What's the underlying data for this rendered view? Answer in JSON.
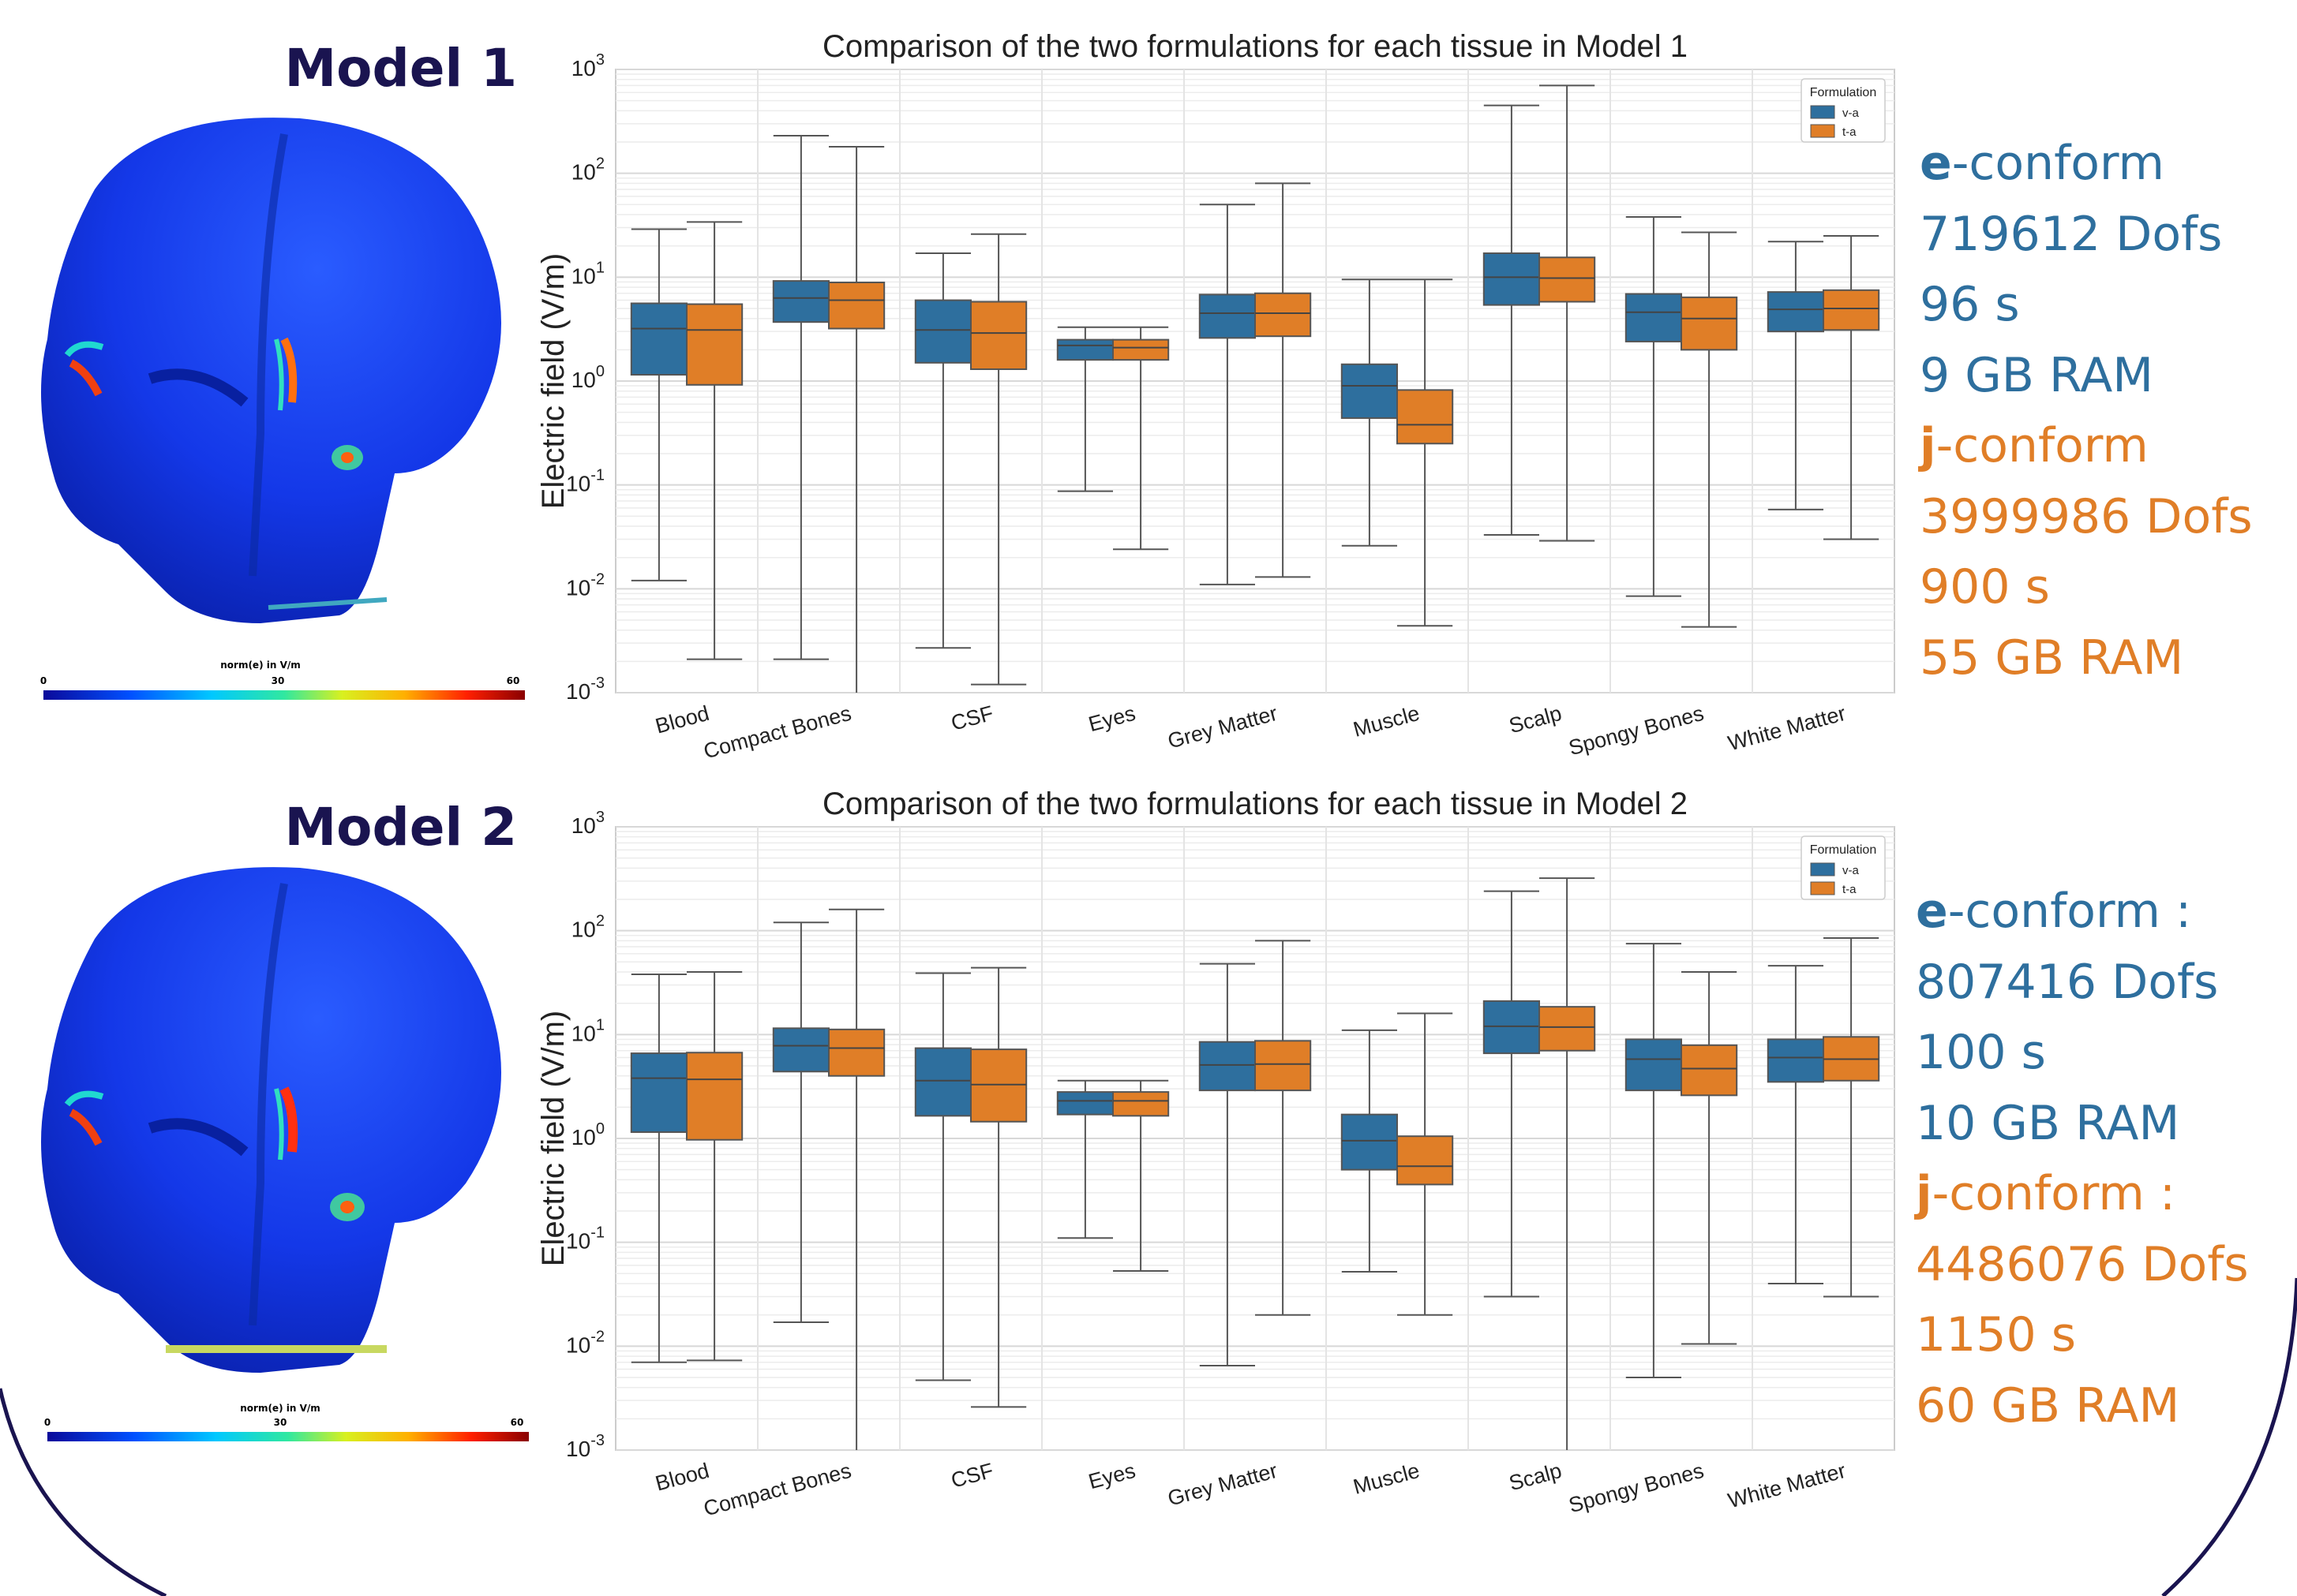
{
  "colors": {
    "va": "#2e6f9e",
    "ta": "#e07e27",
    "frame": "#1a1450"
  },
  "models": [
    {
      "title": "Model 1",
      "colorbar": {
        "label": "norm(e) in V/m",
        "min": "0",
        "mid": "30",
        "max": "60"
      },
      "stats": [
        {
          "bold": "e",
          "rest": "-conform",
          "kind": "e"
        },
        {
          "bold": "",
          "rest": "719612 Dofs",
          "kind": "e"
        },
        {
          "bold": "",
          "rest": "96 s",
          "kind": "e"
        },
        {
          "bold": "",
          "rest": "9 GB RAM",
          "kind": "e"
        },
        {
          "bold": "j",
          "rest": "-conform",
          "kind": "j"
        },
        {
          "bold": "",
          "rest": "3999986 Dofs",
          "kind": "j"
        },
        {
          "bold": "",
          "rest": "900 s",
          "kind": "j"
        },
        {
          "bold": "",
          "rest": "55 GB RAM",
          "kind": "j"
        }
      ]
    },
    {
      "title": "Model 2",
      "colorbar": {
        "label": "norm(e) in V/m",
        "min": "0",
        "mid": "30",
        "max": "60"
      },
      "stats": [
        {
          "bold": "e",
          "rest": "-conform :",
          "kind": "e"
        },
        {
          "bold": "",
          "rest": "807416 Dofs",
          "kind": "e"
        },
        {
          "bold": "",
          "rest": "100 s",
          "kind": "e"
        },
        {
          "bold": "",
          "rest": "10 GB RAM",
          "kind": "e"
        },
        {
          "bold": "j",
          "rest": "-conform :",
          "kind": "j"
        },
        {
          "bold": "",
          "rest": "4486076 Dofs",
          "kind": "j"
        },
        {
          "bold": "",
          "rest": "1150 s",
          "kind": "j"
        },
        {
          "bold": "",
          "rest": "60 GB RAM",
          "kind": "j"
        }
      ]
    }
  ],
  "chart_data": [
    {
      "type": "box",
      "title": "Comparison of the two formulations for each tissue in Model 1",
      "ylabel": "Electric field (V/m)",
      "yscale": "log",
      "ylim": [
        0.001,
        1000
      ],
      "yticks": [
        "10^-3",
        "10^-2",
        "10^-1",
        "10^0",
        "10^1",
        "10^2",
        "10^3"
      ],
      "grid": true,
      "legend": {
        "title": "Formulation",
        "position": "top-right",
        "entries": [
          "v-a",
          "t-a"
        ]
      },
      "categories": [
        "Blood",
        "Compact Bones",
        "CSF",
        "Eyes",
        "Grey Matter",
        "Muscle",
        "Scalp",
        "Spongy Bones",
        "White Matter"
      ],
      "series": [
        {
          "name": "v-a",
          "boxes": [
            {
              "low": 0.012,
              "q1": 1.15,
              "median": 3.2,
              "q3": 5.6,
              "high": 29
            },
            {
              "low": 0.0021,
              "q1": 3.7,
              "median": 6.3,
              "q3": 9.2,
              "high": 230
            },
            {
              "low": 0.0027,
              "q1": 1.5,
              "median": 3.1,
              "q3": 6.0,
              "high": 17
            },
            {
              "low": 0.087,
              "q1": 1.6,
              "median": 2.2,
              "q3": 2.5,
              "high": 3.3
            },
            {
              "low": 0.011,
              "q1": 2.6,
              "median": 4.5,
              "q3": 6.8,
              "high": 50
            },
            {
              "low": 0.026,
              "q1": 0.44,
              "median": 0.9,
              "q3": 1.45,
              "high": 9.5
            },
            {
              "low": 0.033,
              "q1": 5.4,
              "median": 10,
              "q3": 17,
              "high": 450
            },
            {
              "low": 0.0085,
              "q1": 2.4,
              "median": 4.6,
              "q3": 6.9,
              "high": 38
            },
            {
              "low": 0.058,
              "q1": 3.0,
              "median": 4.9,
              "q3": 7.2,
              "high": 22
            }
          ]
        },
        {
          "name": "t-a",
          "boxes": [
            {
              "low": 0.0021,
              "q1": 0.92,
              "median": 3.1,
              "q3": 5.5,
              "high": 34
            },
            {
              "low": 0.001,
              "q1": 3.2,
              "median": 6.0,
              "q3": 8.9,
              "high": 180
            },
            {
              "low": 0.0012,
              "q1": 1.3,
              "median": 2.9,
              "q3": 5.8,
              "high": 26
            },
            {
              "low": 0.024,
              "q1": 1.6,
              "median": 2.1,
              "q3": 2.5,
              "high": 3.3
            },
            {
              "low": 0.013,
              "q1": 2.7,
              "median": 4.5,
              "q3": 7.0,
              "high": 80
            },
            {
              "low": 0.0044,
              "q1": 0.25,
              "median": 0.38,
              "q3": 0.82,
              "high": 9.5
            },
            {
              "low": 0.029,
              "q1": 5.8,
              "median": 9.8,
              "q3": 15.5,
              "high": 700
            },
            {
              "low": 0.0043,
              "q1": 2.0,
              "median": 4.0,
              "q3": 6.4,
              "high": 27
            },
            {
              "low": 0.03,
              "q1": 3.1,
              "median": 5.0,
              "q3": 7.5,
              "high": 25
            }
          ]
        }
      ]
    },
    {
      "type": "box",
      "title": "Comparison of the two formulations for each tissue in Model 2",
      "ylabel": "Electric field (V/m)",
      "yscale": "log",
      "ylim": [
        0.001,
        1000
      ],
      "yticks": [
        "10^-3",
        "10^-2",
        "10^-1",
        "10^0",
        "10^1",
        "10^2",
        "10^3"
      ],
      "grid": true,
      "legend": {
        "title": "Formulation",
        "position": "top-right",
        "entries": [
          "v-a",
          "t-a"
        ]
      },
      "categories": [
        "Blood",
        "Compact Bones",
        "CSF",
        "Eyes",
        "Grey Matter",
        "Muscle",
        "Scalp",
        "Spongy Bones",
        "White Matter"
      ],
      "series": [
        {
          "name": "v-a",
          "boxes": [
            {
              "low": 0.007,
              "q1": 1.15,
              "median": 3.8,
              "q3": 6.6,
              "high": 38
            },
            {
              "low": 0.017,
              "q1": 4.4,
              "median": 7.8,
              "q3": 11.5,
              "high": 120
            },
            {
              "low": 0.0047,
              "q1": 1.65,
              "median": 3.6,
              "q3": 7.4,
              "high": 39
            },
            {
              "low": 0.11,
              "q1": 1.7,
              "median": 2.3,
              "q3": 2.8,
              "high": 3.6
            },
            {
              "low": 0.0065,
              "q1": 2.9,
              "median": 5.1,
              "q3": 8.5,
              "high": 48
            },
            {
              "low": 0.052,
              "q1": 0.5,
              "median": 0.95,
              "q3": 1.7,
              "high": 11
            },
            {
              "low": 0.03,
              "q1": 6.6,
              "median": 12,
              "q3": 21,
              "high": 240
            },
            {
              "low": 0.005,
              "q1": 2.9,
              "median": 5.8,
              "q3": 9.0,
              "high": 75
            },
            {
              "low": 0.04,
              "q1": 3.5,
              "median": 6.0,
              "q3": 9.0,
              "high": 46
            }
          ]
        },
        {
          "name": "t-a",
          "boxes": [
            {
              "low": 0.0073,
              "q1": 0.97,
              "median": 3.7,
              "q3": 6.7,
              "high": 40
            },
            {
              "low": 0.001,
              "q1": 4.0,
              "median": 7.4,
              "q3": 11.2,
              "high": 160
            },
            {
              "low": 0.0026,
              "q1": 1.45,
              "median": 3.3,
              "q3": 7.2,
              "high": 44
            },
            {
              "low": 0.053,
              "q1": 1.65,
              "median": 2.3,
              "q3": 2.8,
              "high": 3.6
            },
            {
              "low": 0.02,
              "q1": 2.9,
              "median": 5.2,
              "q3": 8.7,
              "high": 80
            },
            {
              "low": 0.02,
              "q1": 0.36,
              "median": 0.54,
              "q3": 1.05,
              "high": 16
            },
            {
              "low": 0.001,
              "q1": 7.0,
              "median": 11.8,
              "q3": 18.5,
              "high": 320
            },
            {
              "low": 0.0105,
              "q1": 2.6,
              "median": 4.7,
              "q3": 7.9,
              "high": 40
            },
            {
              "low": 0.03,
              "q1": 3.6,
              "median": 5.8,
              "q3": 9.5,
              "high": 85
            }
          ]
        }
      ]
    }
  ]
}
